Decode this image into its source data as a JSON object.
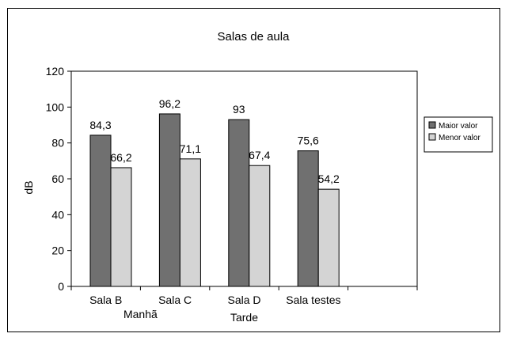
{
  "chart_data": {
    "type": "bar",
    "title": "Salas de aula",
    "ylabel": "dB",
    "xlabel": "",
    "ylim": [
      0,
      120
    ],
    "yticks": [
      0,
      20,
      40,
      60,
      80,
      100,
      120
    ],
    "categories": [
      "Sala B",
      "Sala C",
      "Sala D",
      "Sala testes",
      ""
    ],
    "category_groups": [
      {
        "label": "Manhã"
      },
      {
        "label": "Tarde"
      }
    ],
    "series": [
      {
        "name": "Maior valor",
        "color": "#707070",
        "values": [
          84.3,
          96.2,
          93,
          75.6,
          null
        ],
        "labels": [
          "84,3",
          "96,2",
          "93",
          "75,6",
          ""
        ]
      },
      {
        "name": "Menor valor",
        "color": "#d4d4d4",
        "values": [
          66.2,
          71.1,
          67.4,
          54.2,
          null
        ],
        "labels": [
          "66,2",
          "71,1",
          "67,4",
          "54,2",
          ""
        ]
      }
    ],
    "grid": false,
    "legend": "right"
  }
}
